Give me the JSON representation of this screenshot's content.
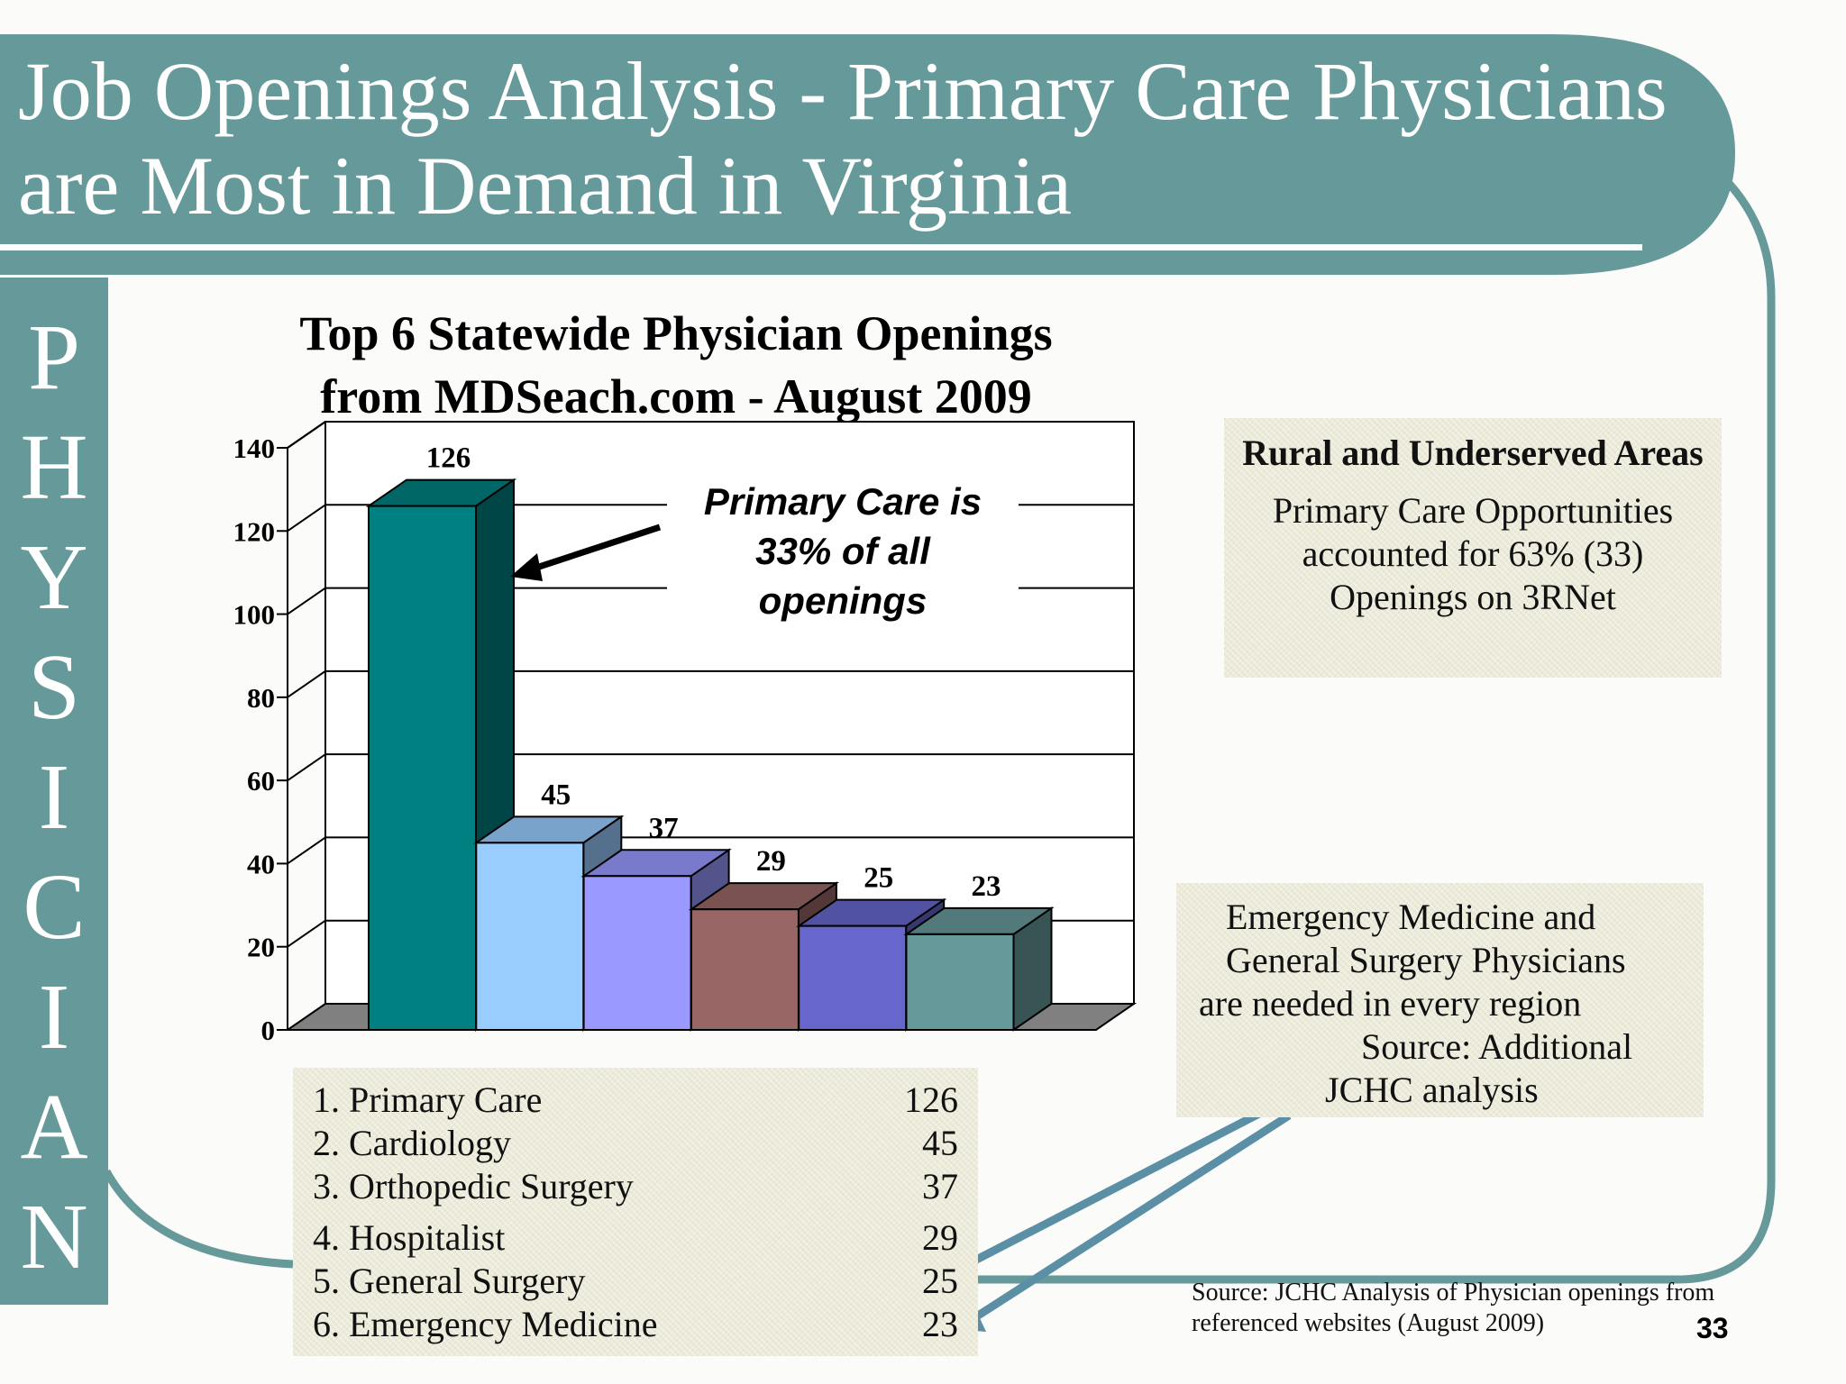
{
  "slide": {
    "title_lines": [
      "Job Openings Analysis - Primary Care Physicians",
      "are Most in Demand in Virginia"
    ],
    "side_label": "PHYSICIAN",
    "page_number": "33",
    "theme_color": "#669999"
  },
  "callout": {
    "text": "Primary Care is 33% of all openings"
  },
  "rural_note": {
    "title": "Rural and Underserved Areas",
    "text": "Primary Care Opportunities\naccounted for   63% (33)\nOpenings on 3RNet"
  },
  "emergency_note": {
    "text": "   Emergency Medicine and\n   General Surgery Physicians\nare needed in every region\n                  Source: Additional\n              JCHC analysis"
  },
  "ranking_list": [
    {
      "label": "1. Primary Care",
      "value": "126"
    },
    {
      "label": "2. Cardiology",
      "value": "45"
    },
    {
      "label": "3. Orthopedic Surgery",
      "value": "37"
    },
    {
      "label": "4. Hospitalist",
      "value": "29"
    },
    {
      "label": "5. General Surgery",
      "value": "25"
    },
    {
      "label": "6. Emergency Medicine",
      "value": "23"
    }
  ],
  "source_note": "Source: JCHC Analysis of Physician openings from\nreferenced websites (August 2009)",
  "chart_data": {
    "type": "bar",
    "title": "Top 6 Statewide Physician Openings\nfrom MDSeach.com - August 2009",
    "categories": [
      "Primary Care",
      "Cardiology",
      "Orthopedic Surgery",
      "Hospitalist",
      "General Surgery",
      "Emergency Medicine"
    ],
    "values": [
      126,
      45,
      37,
      29,
      25,
      23
    ],
    "data_labels": [
      "126",
      "45",
      "37",
      "29",
      "25",
      "23"
    ],
    "bar_colors": [
      "#008080",
      "#99ccff",
      "#9999ff",
      "#996666",
      "#6666cc",
      "#669999"
    ],
    "ylim": [
      0,
      140
    ],
    "yticks": [
      0,
      20,
      40,
      60,
      80,
      100,
      120,
      140
    ],
    "grid": true,
    "xlabel": "",
    "ylabel": ""
  }
}
